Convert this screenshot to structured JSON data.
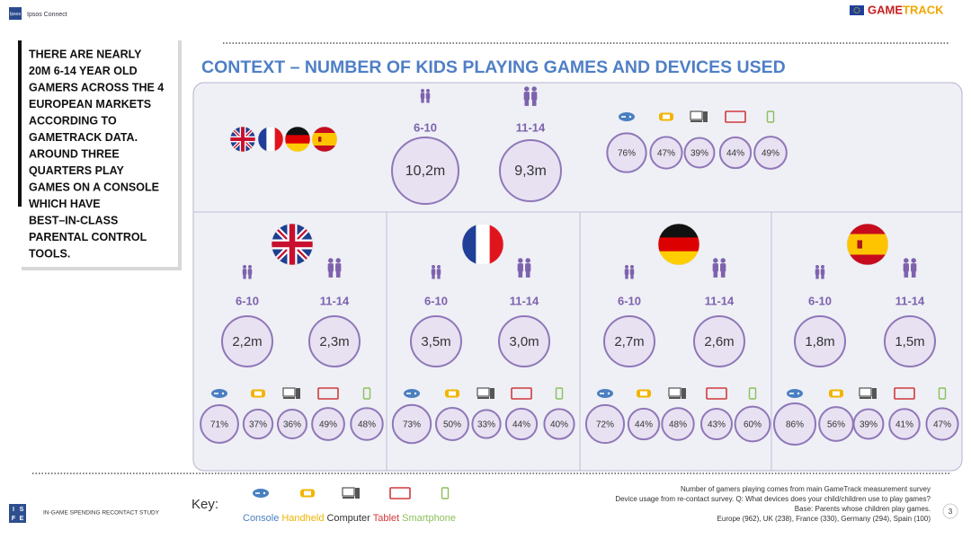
{
  "header": {
    "logo": "Ipsos",
    "brand": "Ipsos Connect",
    "gametrack": [
      "GAME",
      "TRACK"
    ]
  },
  "sidebar": {
    "lines": [
      "THERE ARE NEARLY",
      "20M 6-14 YEAR OLD",
      "GAMERS ACROSS THE 4",
      "EUROPEAN MARKETS",
      "ACCORDING TO",
      "GAMETRACK DATA.",
      "AROUND THREE",
      "QUARTERS PLAY",
      "GAMES ON A CONSOLE",
      "WHICH HAVE",
      "BEST–IN-CLASS",
      "PARENTAL CONTROL",
      "TOOLS."
    ]
  },
  "title": "CONTEXT – NUMBER OF KIDS PLAYING GAMES AND DEVICES USED",
  "total": {
    "age_groups": [
      {
        "label": "6-10",
        "value": "10,2m"
      },
      {
        "label": "11-14",
        "value": "9,3m"
      }
    ],
    "devices": [
      "76%",
      "47%",
      "39%",
      "44%",
      "49%"
    ]
  },
  "markets": [
    {
      "flag": "uk",
      "age_groups": [
        {
          "label": "6-10",
          "value": "2,2m"
        },
        {
          "label": "11-14",
          "value": "2,3m"
        }
      ],
      "devices": [
        "71%",
        "37%",
        "36%",
        "49%",
        "48%"
      ]
    },
    {
      "flag": "fr",
      "age_groups": [
        {
          "label": "6-10",
          "value": "3,5m"
        },
        {
          "label": "11-14",
          "value": "3,0m"
        }
      ],
      "devices": [
        "73%",
        "50%",
        "33%",
        "44%",
        "40%"
      ]
    },
    {
      "flag": "de",
      "age_groups": [
        {
          "label": "6-10",
          "value": "2,7m"
        },
        {
          "label": "11-14",
          "value": "2,6m"
        }
      ],
      "devices": [
        "72%",
        "44%",
        "48%",
        "43%",
        "60%"
      ]
    },
    {
      "flag": "es",
      "age_groups": [
        {
          "label": "6-10",
          "value": "1,8m"
        },
        {
          "label": "11-14",
          "value": "1,5m"
        }
      ],
      "devices": [
        "86%",
        "56%",
        "39%",
        "41%",
        "47%"
      ]
    }
  ],
  "key": {
    "label": "Key:",
    "items": [
      "Console",
      "Handheld",
      "Computer",
      "Tablet",
      "Smartphone"
    ]
  },
  "footer": {
    "isfe": [
      "I",
      "S",
      "F",
      "E"
    ],
    "study": "IN-GAME SPENDING RECONTACT STUDY",
    "notes": [
      "Number of gamers playing comes from main GameTrack measurement survey",
      "Device usage from re-contact survey. Q: What devices does your child/children use to play games?",
      "Base: Parents whose children play games.",
      "Europe (962), UK (238), France (330), Germany (294), Spain (100)"
    ],
    "page": "3"
  }
}
